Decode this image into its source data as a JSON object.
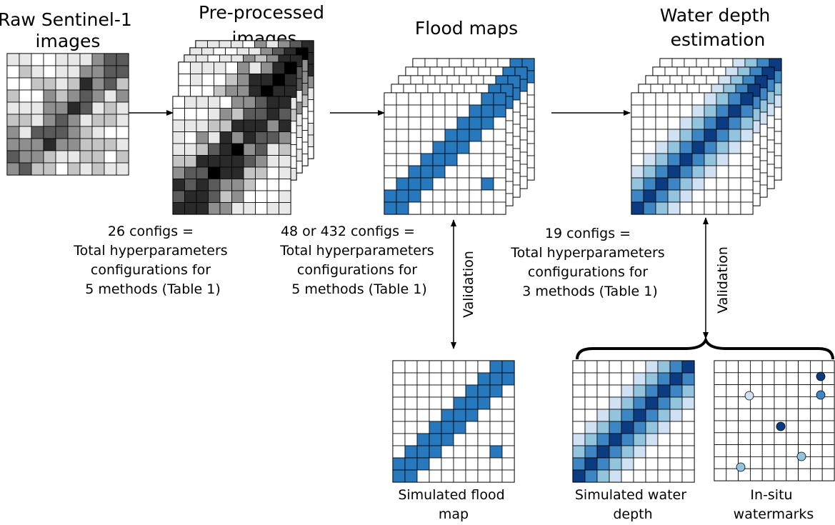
{
  "stages": [
    {
      "title_lines": [
        "Raw Sentinel-1",
        "images"
      ]
    },
    {
      "title_lines": [
        "Pre-processed",
        "images"
      ]
    },
    {
      "title_lines": [
        "Flood maps"
      ]
    },
    {
      "title_lines": [
        "Water depth",
        "estimation"
      ]
    }
  ],
  "configs": [
    {
      "lines": [
        "26 configs =",
        "Total hyperparameters",
        "configurations for",
        "5 methods (Table 1)"
      ]
    },
    {
      "lines": [
        "48 or 432 configs =",
        "Total hyperparameters",
        "configurations for",
        "5 methods (Table 1)"
      ]
    },
    {
      "lines": [
        "19 configs =",
        "Total hyperparameters",
        "configurations for",
        "3 methods (Table 1)"
      ]
    }
  ],
  "validation_label": "Validation",
  "outputs": [
    {
      "caption_lines": [
        "Simulated flood",
        "map"
      ]
    },
    {
      "caption_lines": [
        "Simulated water",
        "depth"
      ]
    },
    {
      "caption_lines": [
        "In-situ",
        "watermarks"
      ]
    }
  ],
  "colors": {
    "flood": "#2878be",
    "depth": [
      "#ffffff",
      "#cfe1f2",
      "#93c4de",
      "#3d85c3",
      "#0b3b80"
    ],
    "gray": [
      "#ffffff",
      "#e8e8e8",
      "#c4c4c4",
      "#8f8f8f",
      "#5a5a5a",
      "#2a2a2a",
      "#000000"
    ]
  }
}
